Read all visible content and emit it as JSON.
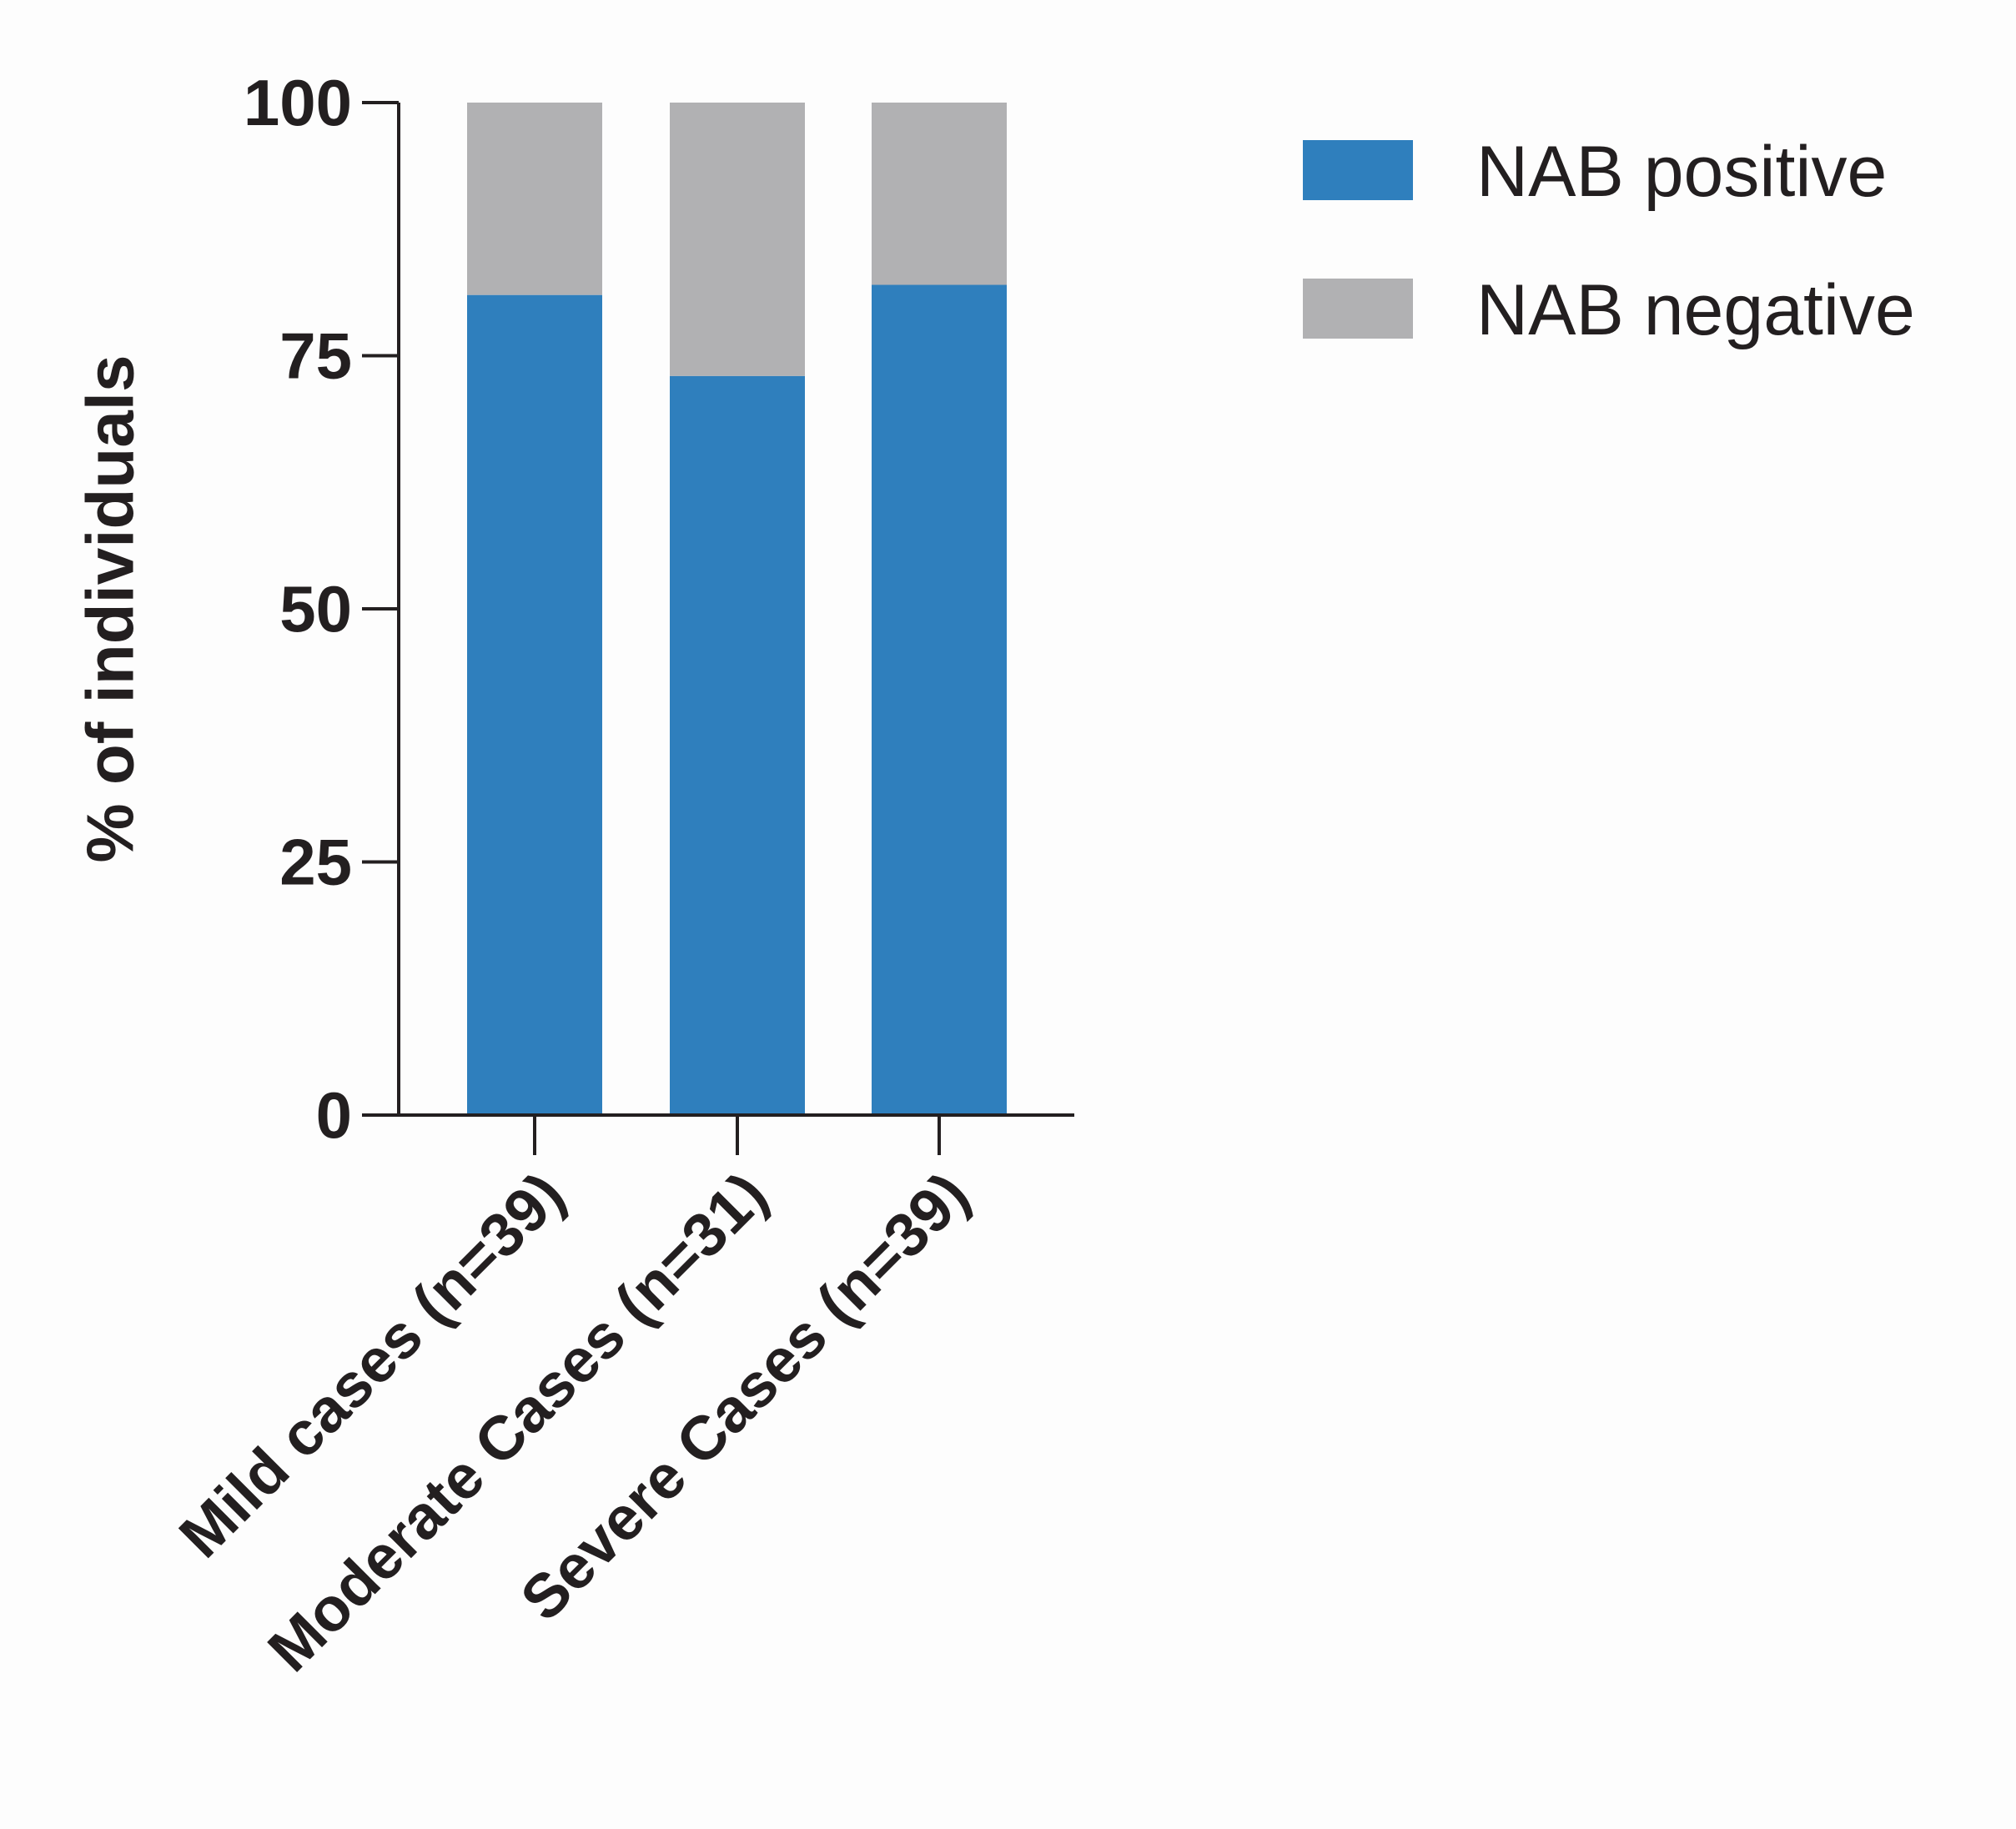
{
  "chart_data": {
    "type": "bar",
    "stacked": true,
    "title": "",
    "xlabel": "",
    "ylabel": "% of individuals",
    "ylim": [
      0,
      100
    ],
    "yticks": [
      0,
      25,
      50,
      75,
      100
    ],
    "grid": false,
    "legend_position": "top-right",
    "categories": [
      "Mild cases (n=39)",
      "Moderate Cases (n=31)",
      "Severe Cases (n=39)"
    ],
    "series": [
      {
        "name": "NAB positive",
        "color": "#2f7fbd",
        "values": [
          81,
          73,
          82
        ]
      },
      {
        "name": "NAB negative",
        "color": "#b1b1b3",
        "values": [
          19,
          27,
          18
        ]
      }
    ]
  }
}
